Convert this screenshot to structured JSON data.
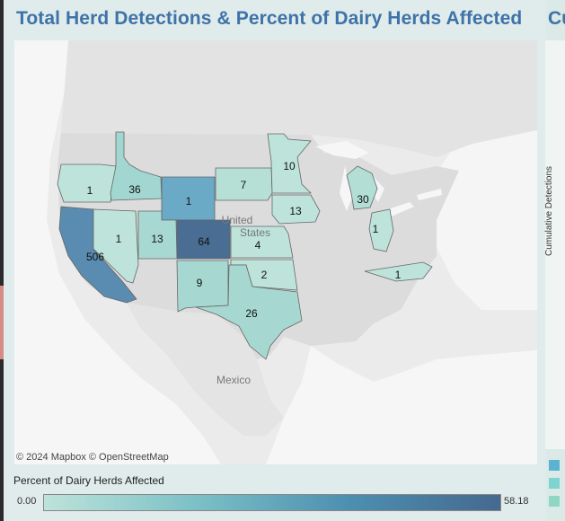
{
  "title": "Total Herd Detections & Percent of Dairy Herds Affected",
  "next_title_fragment": "Cu",
  "attribution": "© 2024 Mapbox  © OpenStreetMap",
  "places": {
    "us": "United\nStates",
    "mexico": "Mexico"
  },
  "legend": {
    "title": "Percent of Dairy Herds Affected",
    "min": "0.00",
    "max": "58.18"
  },
  "right_axis_label": "Cumulative Detections",
  "colors": {
    "low": "#bde3da",
    "mid": "#7cc0c6",
    "high": "#4d8fb0",
    "max": "#45698f",
    "swatch_legend": [
      "#5ab4cf",
      "#7fd3d1",
      "#8fd6c3"
    ]
  },
  "states": [
    {
      "name": "Oregon",
      "detections": "1",
      "color": "#bde3da"
    },
    {
      "name": "Idaho",
      "detections": "36",
      "color": "#a2d6d0"
    },
    {
      "name": "Wyoming",
      "detections": "1",
      "color": "#6aaac6"
    },
    {
      "name": "South Dakota",
      "detections": "7",
      "color": "#b6e0d6"
    },
    {
      "name": "Minnesota",
      "detections": "10",
      "color": "#bde3da"
    },
    {
      "name": "Iowa",
      "detections": "13",
      "color": "#bde3da"
    },
    {
      "name": "Michigan",
      "detections": "30",
      "color": "#b2ded5"
    },
    {
      "name": "Ohio",
      "detections": "1",
      "color": "#bde3da"
    },
    {
      "name": "California",
      "detections": "506",
      "color": "#5a8bb0"
    },
    {
      "name": "Nevada",
      "detections": "1",
      "color": "#bde3da"
    },
    {
      "name": "Utah",
      "detections": "13",
      "color": "#a8d8d2"
    },
    {
      "name": "Colorado",
      "detections": "64",
      "color": "#4a6d93"
    },
    {
      "name": "Kansas",
      "detections": "4",
      "color": "#bde3da"
    },
    {
      "name": "Oklahoma",
      "detections": "2",
      "color": "#bde3da"
    },
    {
      "name": "New Mexico",
      "detections": "9",
      "color": "#a6d8d1"
    },
    {
      "name": "Texas",
      "detections": "26",
      "color": "#a6d8d1"
    },
    {
      "name": "North Carolina",
      "detections": "1",
      "color": "#bde3da"
    }
  ]
}
